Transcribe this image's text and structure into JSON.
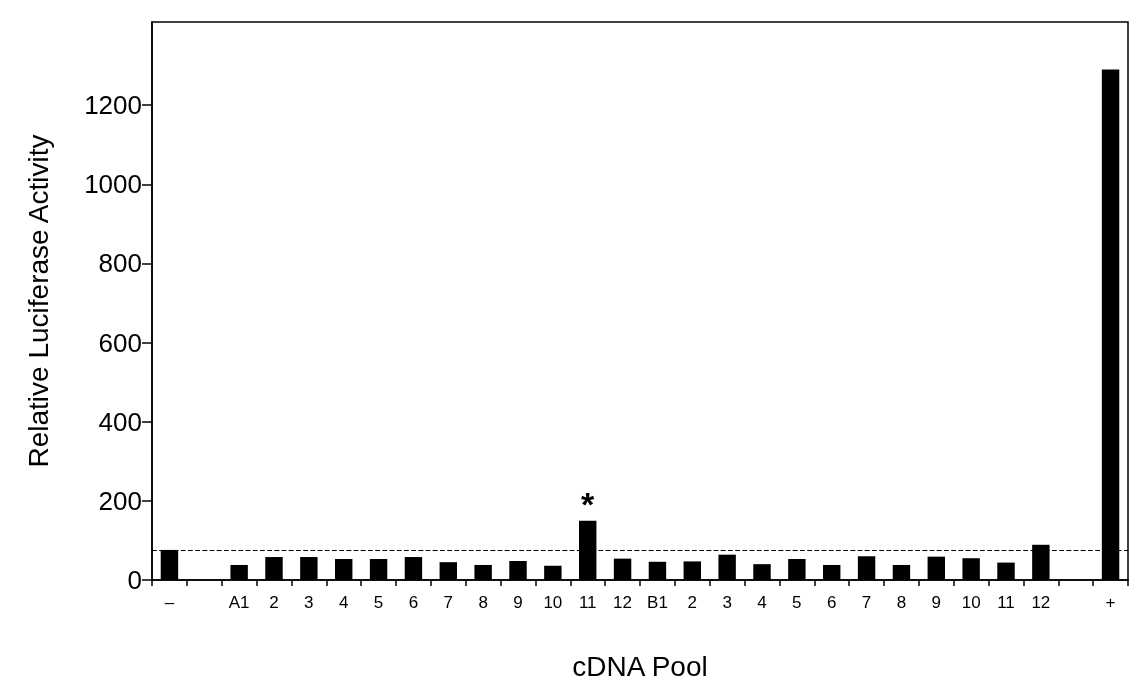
{
  "chart_data": {
    "type": "bar",
    "xlabel": "cDNA Pool",
    "ylabel": "Relative Luciferase Activity",
    "categories": [
      "–",
      null,
      "A1",
      "2",
      "3",
      "4",
      "5",
      "6",
      "7",
      "8",
      "9",
      "10",
      "11",
      "12",
      "B1",
      "2",
      "3",
      "4",
      "5",
      "6",
      "7",
      "8",
      "9",
      "10",
      "11",
      "12",
      null,
      "+"
    ],
    "values": [
      76,
      null,
      38,
      58,
      58,
      53,
      53,
      58,
      45,
      38,
      48,
      36,
      150,
      54,
      46,
      47,
      64,
      40,
      53,
      38,
      60,
      38,
      59,
      55,
      44,
      89,
      null,
      1290
    ],
    "value_labels": [
      null,
      null,
      null,
      null,
      null,
      null,
      null,
      null,
      null,
      null,
      null,
      null,
      "*",
      null,
      null,
      null,
      null,
      null,
      null,
      null,
      null,
      null,
      null,
      null,
      null,
      null,
      null,
      null
    ],
    "color": "#000000",
    "ylim": [
      0,
      1410
    ],
    "yticks": [
      0,
      200,
      400,
      600,
      800,
      1000,
      1200
    ],
    "ref_lines": [
      {
        "axis": "y",
        "value": 76,
        "line_style": "dashed",
        "color": "#000000"
      }
    ],
    "grid": false
  }
}
